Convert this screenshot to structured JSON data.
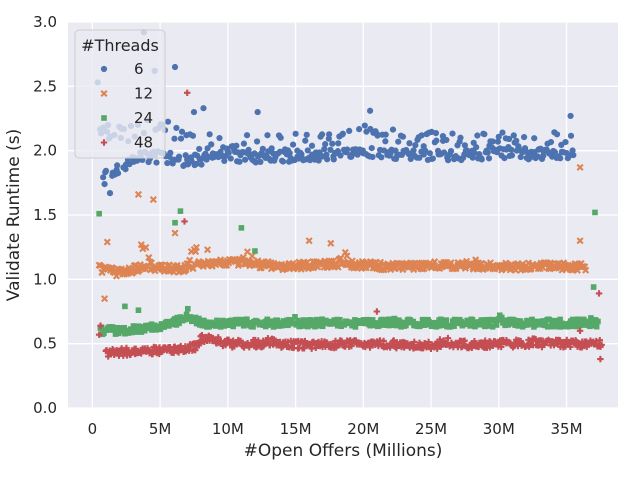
{
  "chart_data": {
    "type": "scatter",
    "title": "",
    "xlabel": "#Open Offers (Millions)",
    "ylabel": "Validate Runtime (s)",
    "xlim": [
      -1.8,
      38.8
    ],
    "ylim": [
      0.0,
      3.0
    ],
    "x_ticks": [
      0,
      5,
      10,
      15,
      20,
      25,
      30,
      35
    ],
    "x_tick_labels": [
      "0",
      "5M",
      "10M",
      "15M",
      "20M",
      "25M",
      "30M",
      "35M"
    ],
    "y_ticks": [
      0.0,
      0.5,
      1.0,
      1.5,
      2.0,
      2.5,
      3.0
    ],
    "y_tick_labels": [
      "0.0",
      "0.5",
      "1.0",
      "1.5",
      "2.0",
      "2.5",
      "3.0"
    ],
    "grid": true,
    "legend": {
      "title": "#Threads",
      "placement": "top-left",
      "entries": [
        {
          "label": "6",
          "marker": "circle",
          "color": "#4c72b0"
        },
        {
          "label": "12",
          "marker": "x",
          "color": "#dd8452"
        },
        {
          "label": "24",
          "marker": "square",
          "color": "#55a868"
        },
        {
          "label": "48",
          "marker": "plus",
          "color": "#c44e52"
        }
      ]
    },
    "series": [
      {
        "name": "6",
        "marker": "circle",
        "color": "#4c72b0",
        "x_range": [
          0.6,
          35.5
        ],
        "n_points": 420,
        "baseline_segments": [
          [
            0.6,
            1.82
          ],
          [
            2.0,
            1.85
          ],
          [
            3.5,
            1.95
          ],
          [
            5.0,
            1.95
          ],
          [
            7.0,
            1.92
          ],
          [
            9.0,
            1.95
          ],
          [
            12.0,
            1.95
          ],
          [
            15.0,
            1.96
          ],
          [
            20.0,
            1.98
          ],
          [
            25.0,
            1.96
          ],
          [
            30.0,
            1.98
          ],
          [
            35.5,
            1.97
          ]
        ],
        "upper_band": [
          [
            3.0,
            2.2
          ],
          [
            5.0,
            2.3
          ],
          [
            7.0,
            2.15
          ],
          [
            10.0,
            2.12
          ],
          [
            15.0,
            2.14
          ],
          [
            20.0,
            2.2
          ],
          [
            25.0,
            2.15
          ],
          [
            30.0,
            2.15
          ],
          [
            35.5,
            2.15
          ]
        ],
        "outliers": [
          [
            0.4,
            2.53
          ],
          [
            3.8,
            2.92
          ],
          [
            4.6,
            2.62
          ],
          [
            6.1,
            2.65
          ],
          [
            7.5,
            2.3
          ],
          [
            8.2,
            2.33
          ],
          [
            12.2,
            2.3
          ],
          [
            20.5,
            2.31
          ],
          [
            35.3,
            2.27
          ],
          [
            1.3,
            1.67
          ],
          [
            0.9,
            1.74
          ]
        ]
      },
      {
        "name": "12",
        "marker": "x",
        "color": "#dd8452",
        "x_range": [
          0.6,
          36.4
        ],
        "n_points": 520,
        "baseline_segments": [
          [
            0.6,
            1.08
          ],
          [
            2.0,
            1.05
          ],
          [
            4.0,
            1.1
          ],
          [
            6.5,
            1.08
          ],
          [
            8.0,
            1.12
          ],
          [
            11.0,
            1.13
          ],
          [
            14.0,
            1.1
          ],
          [
            18.0,
            1.12
          ],
          [
            22.0,
            1.1
          ],
          [
            26.0,
            1.11
          ],
          [
            30.0,
            1.1
          ],
          [
            35.5,
            1.1
          ]
        ],
        "bumps": [
          [
            3.8,
            1.35
          ],
          [
            7.5,
            1.3
          ],
          [
            11.5,
            1.25
          ],
          [
            18.5,
            1.25
          ],
          [
            28.0,
            1.2
          ]
        ],
        "outliers": [
          [
            0.5,
            1.11
          ],
          [
            1.1,
            1.29
          ],
          [
            3.4,
            1.66
          ],
          [
            4.5,
            1.62
          ],
          [
            6.1,
            1.36
          ],
          [
            8.5,
            1.23
          ],
          [
            16.0,
            1.3
          ],
          [
            17.6,
            1.28
          ],
          [
            36.0,
            1.87
          ],
          [
            36.0,
            1.3
          ],
          [
            0.9,
            0.85
          ]
        ]
      },
      {
        "name": "24",
        "marker": "square",
        "color": "#55a868",
        "x_range": [
          0.6,
          37.3
        ],
        "n_points": 520,
        "baseline_segments": [
          [
            0.6,
            0.6
          ],
          [
            2.0,
            0.6
          ],
          [
            5.0,
            0.63
          ],
          [
            7.0,
            0.7
          ],
          [
            8.5,
            0.65
          ],
          [
            11.0,
            0.66
          ],
          [
            14.0,
            0.66
          ],
          [
            18.0,
            0.66
          ],
          [
            22.0,
            0.66
          ],
          [
            26.0,
            0.66
          ],
          [
            30.0,
            0.66
          ],
          [
            36.8,
            0.66
          ]
        ],
        "bumps": [
          [
            7.1,
            0.83
          ],
          [
            11.8,
            0.72
          ],
          [
            15.0,
            0.74
          ],
          [
            22.0,
            0.72
          ],
          [
            30.0,
            0.72
          ]
        ],
        "outliers": [
          [
            0.5,
            1.51
          ],
          [
            6.1,
            1.44
          ],
          [
            6.5,
            1.53
          ],
          [
            11.0,
            1.4
          ],
          [
            12.0,
            1.22
          ],
          [
            37.1,
            1.52
          ],
          [
            37.0,
            0.94
          ],
          [
            36.8,
            0.7
          ],
          [
            2.4,
            0.79
          ],
          [
            3.4,
            0.76
          ]
        ]
      },
      {
        "name": "48",
        "marker": "plus",
        "color": "#c44e52",
        "x_range": [
          1.0,
          37.6
        ],
        "n_points": 560,
        "baseline_segments": [
          [
            1.0,
            0.43
          ],
          [
            3.0,
            0.44
          ],
          [
            6.0,
            0.45
          ],
          [
            7.5,
            0.47
          ],
          [
            8.5,
            0.55
          ],
          [
            10.0,
            0.5
          ],
          [
            13.0,
            0.5
          ],
          [
            16.0,
            0.49
          ],
          [
            20.0,
            0.5
          ],
          [
            25.0,
            0.49
          ],
          [
            30.0,
            0.5
          ],
          [
            37.0,
            0.5
          ]
        ],
        "bumps": [
          [
            8.3,
            0.6
          ],
          [
            13.0,
            0.58
          ],
          [
            19.0,
            0.57
          ],
          [
            26.0,
            0.56
          ],
          [
            33.0,
            0.56
          ]
        ],
        "outliers": [
          [
            0.5,
            0.57
          ],
          [
            0.6,
            0.64
          ],
          [
            7.0,
            2.45
          ],
          [
            6.8,
            1.45
          ],
          [
            37.4,
            0.89
          ],
          [
            37.5,
            0.38
          ],
          [
            36.0,
            0.6
          ],
          [
            21.0,
            0.75
          ],
          [
            32.5,
            0.54
          ]
        ]
      }
    ]
  }
}
